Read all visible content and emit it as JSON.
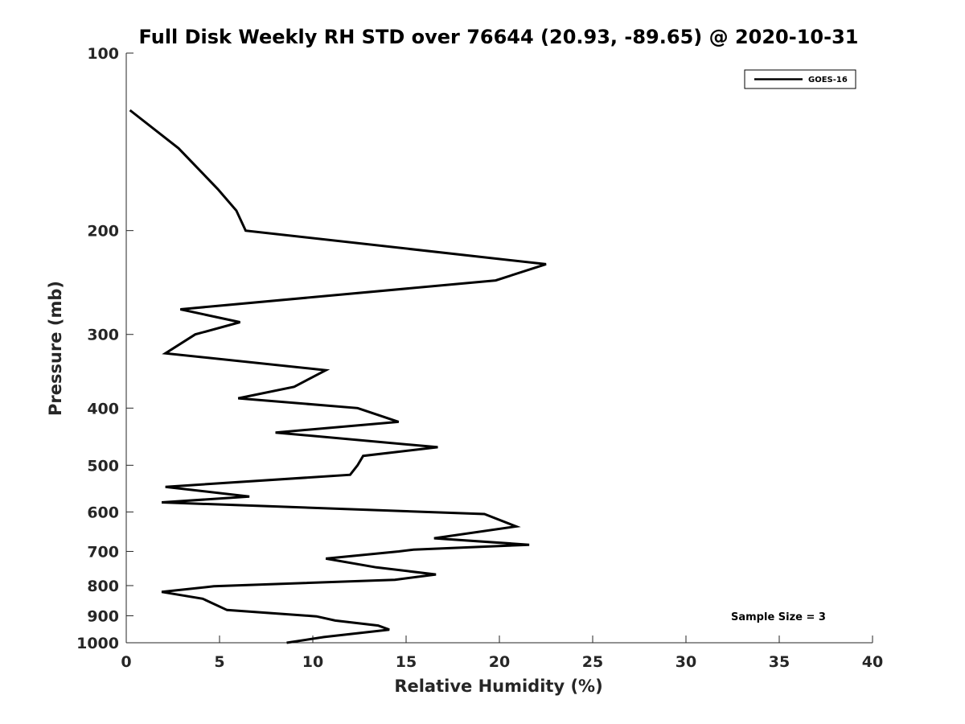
{
  "chart_data": {
    "type": "line",
    "title": "Full Disk Weekly RH STD over 76644 (20.93, -89.65) @ 2020-10-31",
    "xlabel": "Relative Humidity (%)",
    "ylabel": "Pressure (mb)",
    "xlim": [
      0,
      40
    ],
    "ylim": [
      100,
      1000
    ],
    "y_scale": "log",
    "y_reversed": true,
    "x_ticks": [
      0,
      5,
      10,
      15,
      20,
      25,
      30,
      35,
      40
    ],
    "y_ticks": [
      100,
      200,
      300,
      400,
      500,
      600,
      700,
      800,
      900,
      1000
    ],
    "grid": false,
    "legend_position": "top-right",
    "series": [
      {
        "name": "GOES-16",
        "color": "#000000",
        "x": [
          0.2,
          2.8,
          4.9,
          5.9,
          6.4,
          22.5,
          19.8,
          2.9,
          6.1,
          3.7,
          2.1,
          10.7,
          9.0,
          6.0,
          12.4,
          14.6,
          8.0,
          16.7,
          12.7,
          12.4,
          12.0,
          2.1,
          6.6,
          1.9,
          19.2,
          20.9,
          16.5,
          21.6,
          15.4,
          14.6,
          10.7,
          13.4,
          16.6,
          14.4,
          4.7,
          1.9,
          4.1,
          5.4,
          10.2,
          11.2,
          13.5,
          14.1,
          10.6,
          8.6
        ],
        "y": [
          125,
          145,
          170,
          185,
          200,
          228,
          243,
          272,
          286,
          300,
          323,
          345,
          368,
          385,
          400,
          422,
          440,
          466,
          482,
          500,
          519,
          544,
          565,
          578,
          605,
          635,
          665,
          682,
          695,
          700,
          720,
          745,
          766,
          782,
          802,
          820,
          842,
          880,
          902,
          917,
          935,
          950,
          978,
          1000
        ]
      }
    ],
    "annotations": [
      "Sample Size = 3"
    ]
  }
}
